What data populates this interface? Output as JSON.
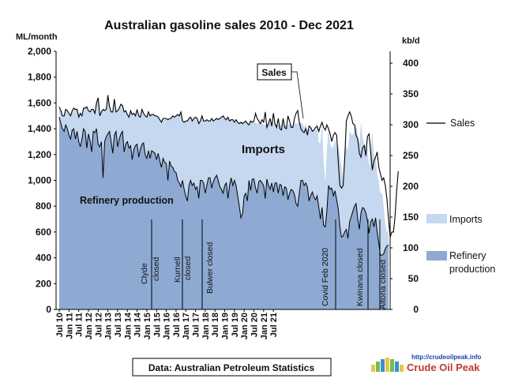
{
  "chart_data": {
    "type": "area",
    "title": "Australian gasoline sales 2010 - Dec 2021",
    "left_unit": "ML/month",
    "right_unit": "kb/d",
    "ylim": [
      0,
      2000
    ],
    "yticks": [
      "0",
      "200",
      "400",
      "600",
      "800",
      "1,000",
      "1,200",
      "1,400",
      "1,600",
      "1,800",
      "2,000"
    ],
    "y2lim": [
      0,
      419.3
    ],
    "y2ticks": [
      "0",
      "50",
      "100",
      "150",
      "200",
      "250",
      "300",
      "350",
      "400"
    ],
    "xticks": [
      "Jul 10",
      "Jan 11",
      "Jul 11",
      "Jan 12",
      "Jul 12",
      "Jan 13",
      "Jul 13",
      "Jan 14",
      "Jul 14",
      "Jan 15",
      "Jul 15",
      "Jan 16",
      "Jul 16",
      "Jan 17",
      "Jul 17",
      "Jan 18",
      "Jul 18",
      "Jan 19",
      "Jul 19",
      "Jan 20",
      "Jul 20",
      "Jan 21",
      "Jul 21"
    ],
    "start": "2010-07",
    "end": "2021-12",
    "series": [
      {
        "name": "Refinery production",
        "color": "#8eaad3",
        "values": [
          1490,
          1440,
          1400,
          1380,
          1430,
          1400,
          1350,
          1320,
          1390,
          1400,
          1320,
          1380,
          1300,
          1260,
          1320,
          1400,
          1380,
          1250,
          1360,
          1310,
          1220,
          1380,
          1370,
          1400,
          1280,
          1260,
          1300,
          1020,
          1300,
          1340,
          1360,
          1380,
          1300,
          1210,
          1350,
          1380,
          1260,
          1320,
          1360,
          1380,
          1220,
          1280,
          1300,
          1250,
          1270,
          1160,
          1240,
          1270,
          1280,
          1180,
          1240,
          1280,
          1290,
          1200,
          1170,
          1230,
          1170,
          1230,
          1220,
          1210,
          1160,
          1210,
          1150,
          1100,
          1170,
          1140,
          1130,
          1000,
          1150,
          1110,
          1100,
          1070,
          1060,
          1000,
          980,
          950,
          1000,
          930,
          880,
          840,
          960,
          1000,
          960,
          980,
          930,
          950,
          860,
          1000,
          1000,
          980,
          900,
          960,
          1020,
          1020,
          940,
          990,
          1020,
          1040,
          1000,
          950,
          930,
          900,
          960,
          980,
          860,
          960,
          1020,
          960,
          1000,
          960,
          880,
          800,
          710,
          740,
          880,
          900,
          840,
          1000,
          920,
          1010,
          1010,
          940,
          900,
          990,
          1000,
          980,
          960,
          860,
          1010,
          960,
          930,
          980,
          910,
          980,
          980,
          900,
          970,
          960,
          880,
          950,
          940,
          850,
          900,
          930,
          920,
          890,
          820,
          800,
          900,
          1000,
          1000,
          960,
          980,
          950,
          840,
          880,
          910,
          870,
          850,
          880,
          790,
          700,
          790,
          650,
          640,
          760,
          960,
          930,
          940,
          880,
          920,
          850,
          780,
          640,
          560,
          570,
          600,
          620,
          550,
          680,
          720,
          760,
          800,
          820,
          700,
          620,
          750,
          790,
          780,
          750,
          690,
          590,
          680,
          700,
          640,
          710,
          600,
          510,
          420,
          420,
          430,
          470,
          490,
          500
        ]
      },
      {
        "name": "Imports",
        "color": "#c6d8f0",
        "values": [
          80,
          100,
          100,
          120,
          120,
          140,
          170,
          180,
          150,
          160,
          230,
          170,
          190,
          260,
          180,
          160,
          180,
          320,
          180,
          220,
          330,
          170,
          150,
          200,
          360,
          240,
          230,
          530,
          240,
          210,
          300,
          190,
          230,
          320,
          280,
          150,
          280,
          240,
          230,
          200,
          310,
          260,
          210,
          240,
          270,
          350,
          280,
          230,
          270,
          320,
          250,
          270,
          230,
          300,
          320,
          300,
          330,
          280,
          290,
          290,
          340,
          280,
          320,
          350,
          310,
          340,
          350,
          470,
          330,
          370,
          400,
          420,
          440,
          510,
          520,
          580,
          460,
          520,
          580,
          620,
          520,
          490,
          500,
          500,
          560,
          530,
          580,
          460,
          500,
          480,
          560,
          510,
          440,
          440,
          540,
          470,
          450,
          440,
          470,
          530,
          560,
          600,
          520,
          490,
          630,
          500,
          450,
          510,
          450,
          510,
          570,
          640,
          740,
          700,
          570,
          560,
          600,
          430,
          540,
          440,
          450,
          510,
          540,
          460,
          440,
          470,
          470,
          570,
          430,
          480,
          520,
          460,
          560,
          460,
          450,
          530,
          460,
          470,
          560,
          480,
          480,
          580,
          540,
          500,
          510,
          560,
          620,
          640,
          550,
          450,
          440,
          450,
          460,
          430,
          560,
          540,
          480,
          520,
          540,
          580,
          500,
          590,
          680,
          500,
          350,
          470,
          450,
          360,
          310,
          380,
          410,
          380,
          500,
          550,
          540,
          440,
          620,
          650,
          680,
          700,
          640,
          590,
          600,
          620,
          640,
          660,
          700,
          550,
          500,
          520,
          560,
          520,
          580,
          670,
          550,
          470,
          450,
          470,
          480,
          480,
          370,
          200,
          100,
          120,
          250,
          430,
          570,
          600
        ]
      },
      {
        "name": "Sales",
        "color": "#000000",
        "values": [
          1570,
          1540,
          1500,
          1500,
          1550,
          1540,
          1520,
          1500,
          1540,
          1560,
          1550,
          1550,
          1490,
          1520,
          1500,
          1560,
          1560,
          1570,
          1540,
          1530,
          1550,
          1550,
          1520,
          1600,
          1640,
          1500,
          1530,
          1550,
          1540,
          1550,
          1660,
          1570,
          1530,
          1530,
          1630,
          1530,
          1540,
          1560,
          1590,
          1580,
          1530,
          1540,
          1510,
          1490,
          1540,
          1510,
          1520,
          1500,
          1550,
          1500,
          1490,
          1550,
          1520,
          1500,
          1490,
          1530,
          1500,
          1510,
          1510,
          1500,
          1500,
          1490,
          1470,
          1450,
          1480,
          1480,
          1480,
          1470,
          1480,
          1480,
          1500,
          1490,
          1500,
          1510,
          1500,
          1530,
          1460,
          1450,
          1460,
          1460,
          1480,
          1490,
          1460,
          1480,
          1490,
          1480,
          1440,
          1460,
          1500,
          1460,
          1460,
          1470,
          1460,
          1460,
          1480,
          1460,
          1470,
          1480,
          1470,
          1480,
          1490,
          1500,
          1480,
          1470,
          1490,
          1460,
          1470,
          1470,
          1450,
          1470,
          1450,
          1440,
          1450,
          1440,
          1450,
          1460,
          1440,
          1430,
          1460,
          1450,
          1460,
          1520,
          1480,
          1460,
          1440,
          1470,
          1450,
          1530,
          1410,
          1440,
          1480,
          1420,
          1520,
          1440,
          1410,
          1480,
          1400,
          1390,
          1480,
          1410,
          1400,
          1500,
          1460,
          1410,
          1410,
          1480,
          1520,
          1540,
          1450,
          1400,
          1380,
          1370,
          1400,
          1350,
          1420,
          1410,
          1380,
          1390,
          1410,
          1420,
          1380,
          1420,
          1450,
          1410,
          1390,
          1430,
          1400,
          1360,
          1300,
          1350,
          1370,
          1350,
          1150,
          960,
          940,
          960,
          1170,
          1460,
          1500,
          1530,
          1500,
          1440,
          1430,
          1350,
          1320,
          1210,
          1180,
          1250,
          1270,
          1190,
          1340,
          1360,
          1220,
          1080,
          1150,
          1180,
          1220,
          1100,
          1050,
          1000,
          1020,
          960,
          860,
          700,
          560,
          600,
          600,
          720,
          920,
          1070
        ]
      }
    ],
    "annotations": [
      "Imports",
      "Refinery production",
      "Sales",
      "Clyde closed",
      "Kurnell closed",
      "Bulwer closed",
      "Covid Feb 2020",
      "Kwinana closed",
      "Altona closed"
    ],
    "legend": [
      "Sales",
      "Imports",
      "Refinery production"
    ],
    "legend_position": "right",
    "grid": false
  },
  "labels": {
    "imports": "Imports",
    "refinery": "Refinery production",
    "sales_callout": "Sales",
    "legend_sales": "Sales",
    "legend_imports": "Imports",
    "legend_refinery_1": "Refinery",
    "legend_refinery_2": "production",
    "evt_clyde_1": "Clyde",
    "evt_clyde_2": "closed",
    "evt_kurnell_1": "Kurnell",
    "evt_kurnell_2": "closed",
    "evt_bulwer": "Bulwer closed",
    "evt_covid": "Covid Feb 2020",
    "evt_kwinana": "Kwinana closed",
    "evt_altona": "Altona closed"
  },
  "source": "Data: Australian Petroleum Statistics",
  "logo": {
    "url": "http://crudeoilpeak.info",
    "name": "Crude Oil Peak"
  }
}
